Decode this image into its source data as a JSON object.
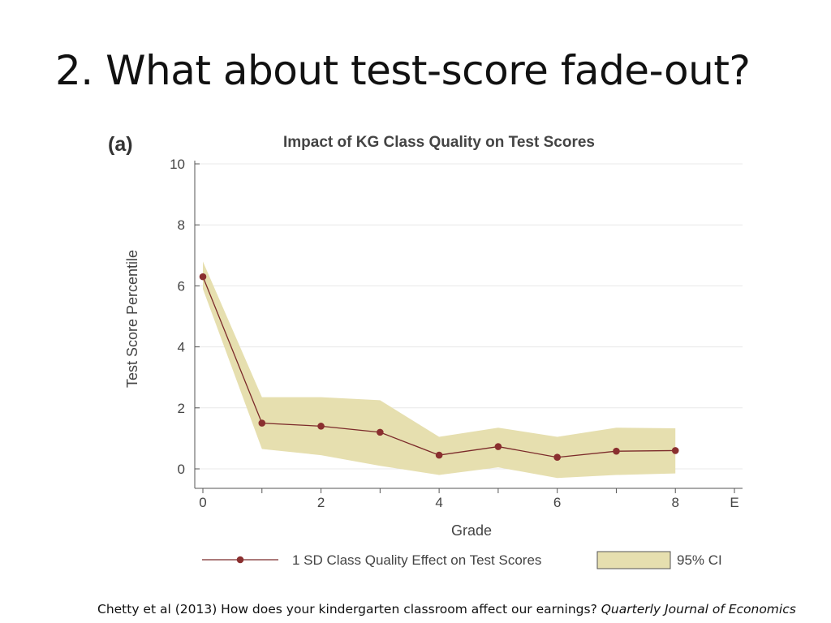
{
  "slide": {
    "title": "2. What about test-score fade-out?",
    "panel_label": "(a)",
    "citation": "Chetty et al (2013)  How does your kindergarten classroom affect our earnings?",
    "journal": "Quarterly Journal of Economics"
  },
  "colors": {
    "line": "#7b2a2a",
    "marker": "#8a2f2f",
    "ci_fill": "#e6dfaf",
    "grid": "#e8e8e8",
    "axis": "#555555",
    "text": "#444444"
  },
  "chart_data": {
    "type": "line",
    "title": "Impact of KG Class Quality on Test Scores",
    "xlabel": "Grade",
    "ylabel": "Test Score Percentile",
    "x_ticks": [
      "0",
      "2",
      "4",
      "6",
      "8",
      "E"
    ],
    "y_ticks": [
      "0",
      "2",
      "4",
      "6",
      "8",
      "10"
    ],
    "xlim": [
      0,
      9
    ],
    "ylim": [
      0,
      10
    ],
    "grid": true,
    "legend_position": "bottom",
    "x": [
      0,
      1,
      2,
      3,
      4,
      5,
      6,
      7,
      8
    ],
    "series": [
      {
        "name": "1 SD Class Quality Effect on Test Scores",
        "values": [
          6.3,
          1.5,
          1.4,
          1.2,
          0.45,
          0.73,
          0.38,
          0.58,
          0.6
        ]
      }
    ],
    "confidence_band": {
      "name": "95% CI",
      "lower": [
        5.9,
        0.65,
        0.45,
        0.1,
        -0.2,
        0.05,
        -0.3,
        -0.2,
        -0.15
      ],
      "upper": [
        6.8,
        2.35,
        2.35,
        2.25,
        1.05,
        1.35,
        1.05,
        1.35,
        1.33
      ]
    }
  }
}
